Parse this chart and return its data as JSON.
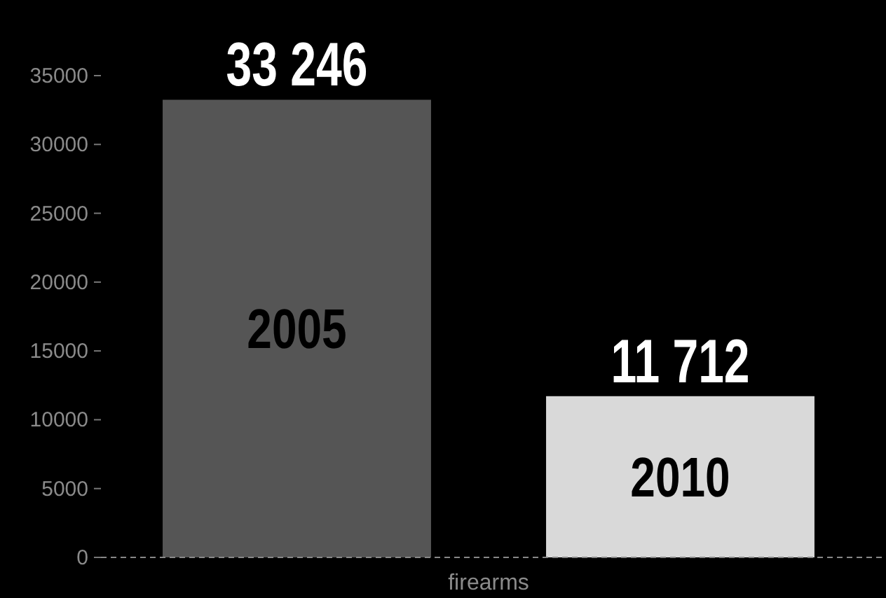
{
  "chart_data": {
    "type": "bar",
    "categories": [
      "firearms"
    ],
    "series": [
      {
        "name": "2005",
        "color": "#555555",
        "values": [
          33246
        ],
        "value_labels": [
          "33 246"
        ]
      },
      {
        "name": "2010",
        "color": "#d9d9d9",
        "values": [
          11712
        ],
        "value_labels": [
          "11 712"
        ]
      }
    ],
    "ylim": [
      0,
      35000
    ],
    "yticks": [
      0,
      5000,
      10000,
      15000,
      20000,
      25000,
      30000,
      35000
    ],
    "grid": false
  }
}
